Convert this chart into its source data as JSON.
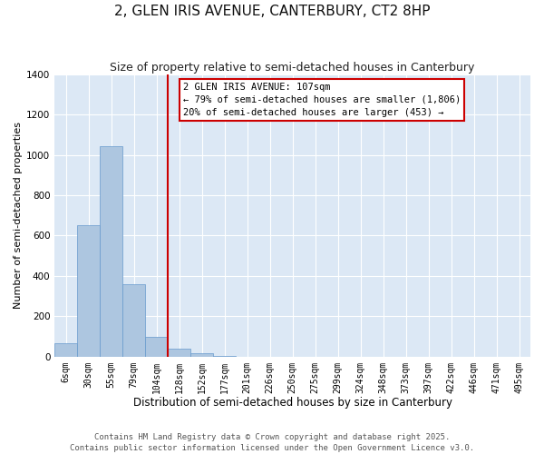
{
  "title": "2, GLEN IRIS AVENUE, CANTERBURY, CT2 8HP",
  "subtitle": "Size of property relative to semi-detached houses in Canterbury",
  "xlabel": "Distribution of semi-detached houses by size in Canterbury",
  "ylabel": "Number of semi-detached properties",
  "bin_labels": [
    "6sqm",
    "30sqm",
    "55sqm",
    "79sqm",
    "104sqm",
    "128sqm",
    "152sqm",
    "177sqm",
    "201sqm",
    "226sqm",
    "250sqm",
    "275sqm",
    "299sqm",
    "324sqm",
    "348sqm",
    "373sqm",
    "397sqm",
    "422sqm",
    "446sqm",
    "471sqm",
    "495sqm"
  ],
  "bar_values": [
    65,
    650,
    1045,
    360,
    100,
    40,
    15,
    2,
    0,
    0,
    0,
    0,
    0,
    0,
    0,
    0,
    0,
    0,
    0,
    0,
    0
  ],
  "bar_color": "#adc6e0",
  "bar_edge_color": "#6699cc",
  "fig_bg": "#ffffff",
  "ax_bg": "#dce8f5",
  "grid_color": "#ffffff",
  "vline_x_idx": 4,
  "vline_color": "#cc0000",
  "annotation_text": "2 GLEN IRIS AVENUE: 107sqm\n← 79% of semi-detached houses are smaller (1,806)\n20% of semi-detached houses are larger (453) →",
  "annotation_box_edge": "#cc0000",
  "ylim": [
    0,
    1400
  ],
  "yticks": [
    0,
    200,
    400,
    600,
    800,
    1000,
    1200,
    1400
  ],
  "footer1": "Contains HM Land Registry data © Crown copyright and database right 2025.",
  "footer2": "Contains public sector information licensed under the Open Government Licence v3.0."
}
